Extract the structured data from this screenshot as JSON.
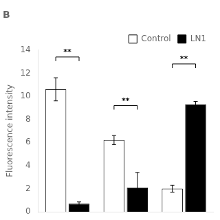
{
  "chart_data": {
    "type": "bar",
    "title": "B",
    "categories": [
      null,
      null,
      null
    ],
    "series": [
      {
        "name": "Control",
        "color": "white",
        "values": [
          10.6,
          6.2,
          2.0
        ],
        "errors": [
          1.0,
          0.4,
          0.3
        ]
      },
      {
        "name": "LN1",
        "color": "black",
        "values": [
          0.7,
          2.1,
          9.3
        ],
        "errors": [
          0.15,
          1.3,
          0.25
        ]
      }
    ],
    "ylabel": "Fluorescence intensity",
    "ylim": [
      0,
      14
    ],
    "yticks": [
      0,
      2,
      4,
      6,
      8,
      10,
      12,
      14
    ],
    "annotations": [
      {
        "text": "**",
        "y": 13.4
      },
      {
        "text": "**",
        "y": 9.2
      },
      {
        "text": "**",
        "y": 12.8
      }
    ],
    "grid": false,
    "legend": "upper right",
    "tick_labels": "y"
  }
}
